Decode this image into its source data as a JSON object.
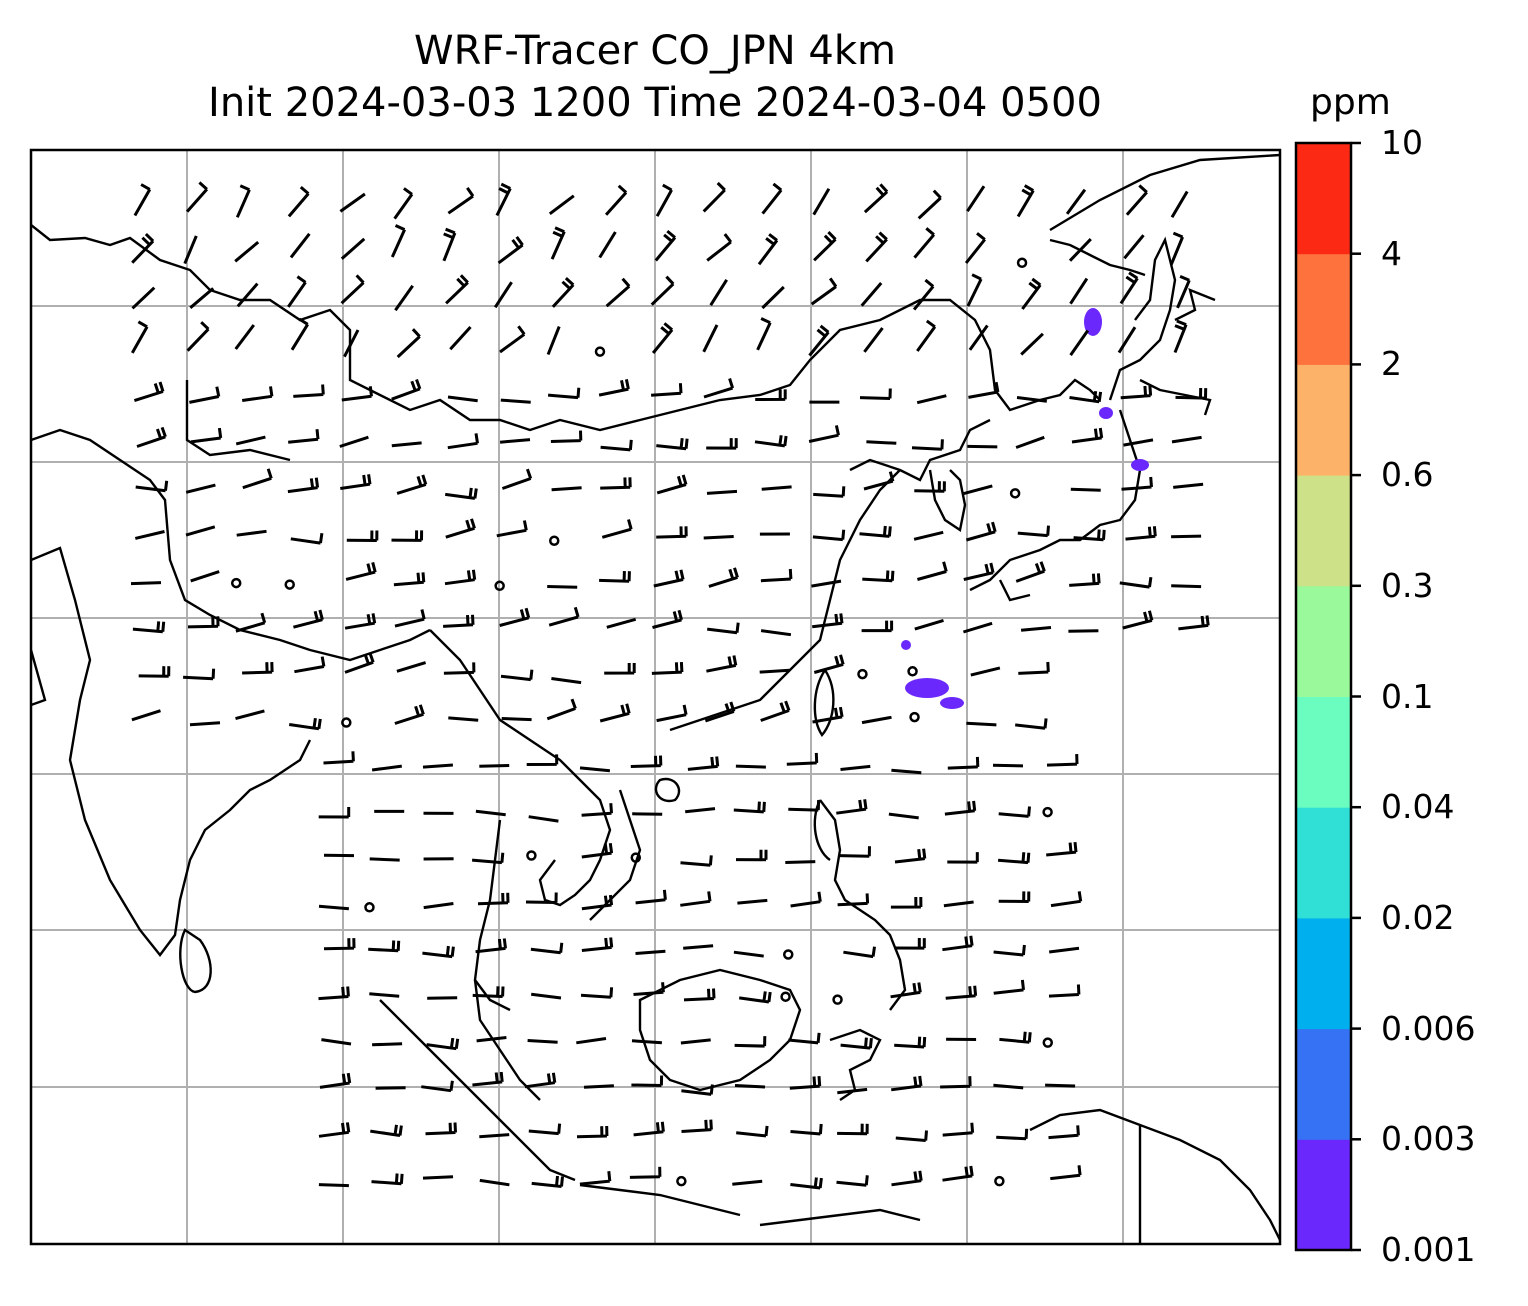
{
  "title": {
    "line1": "WRF-Tracer CO_JPN 4km",
    "line2": "Init 2024-03-03 1200 Time 2024-03-04 0500"
  },
  "colorbar": {
    "unit": "ppm",
    "ticks": [
      "0.001",
      "0.003",
      "0.006",
      "0.02",
      "0.04",
      "0.1",
      "0.3",
      "0.6",
      "2",
      "4",
      "10"
    ],
    "colors": [
      "#6a28fc",
      "#3573f4",
      "#00b0ee",
      "#30dfd6",
      "#6bfcbf",
      "#99f99b",
      "#cde188",
      "#fcb268",
      "#fd723d",
      "#fc2a14"
    ]
  },
  "map": {
    "gridlines": true,
    "features": [
      "coastlines",
      "country-borders",
      "wind-barbs",
      "tracer-concentration"
    ]
  }
}
